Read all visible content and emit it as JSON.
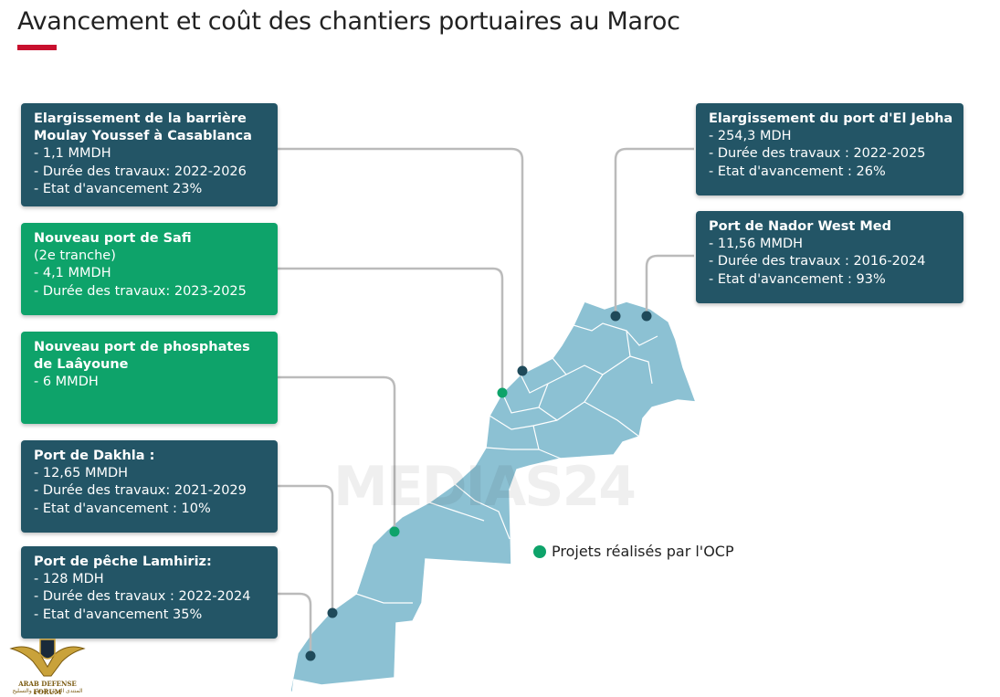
{
  "title": "Avancement et coût des chantiers portuaires au Maroc",
  "watermark": "MEDIAS24",
  "legend": {
    "label": "Projets réalisés par l'OCP",
    "color": "#0ea36a"
  },
  "colors": {
    "dark_card": "#235566",
    "green_card": "#0ea36a",
    "map_fill": "#8cc1d3",
    "accent": "#c8102e"
  },
  "cards": [
    {
      "id": "casablanca",
      "type": "dark",
      "title_lines": [
        "Elargissement de la barrière",
        "Moulay Youssef à Casablanca"
      ],
      "lines": [
        "- 1,1 MMDH",
        "- Durée des travaux: 2022-2026",
        "- Etat d'avancement 23%"
      ]
    },
    {
      "id": "safi",
      "type": "green",
      "title_lines": [
        "Nouveau port de Safi"
      ],
      "lines": [
        "(2e tranche)",
        "- 4,1 MMDH",
        "- Durée des travaux: 2023-2025"
      ]
    },
    {
      "id": "laayoune",
      "type": "green",
      "title_lines": [
        "Nouveau port de phosphates",
        "de Laâyoune"
      ],
      "lines": [
        "- 6 MMDH"
      ]
    },
    {
      "id": "dakhla",
      "type": "dark",
      "title_lines": [
        "Port de Dakhla :"
      ],
      "lines": [
        "- 12,65 MMDH",
        "- Durée des travaux: 2021-2029",
        "- Etat d'avancement : 10%"
      ]
    },
    {
      "id": "lamhiriz",
      "type": "dark",
      "title_lines": [
        "Port de pêche Lamhiriz:"
      ],
      "lines": [
        "- 128 MDH",
        "- Durée des travaux : 2022-2024",
        "- Etat d'avancement 35%"
      ]
    },
    {
      "id": "eljebha",
      "type": "dark",
      "title_lines": [
        "Elargissement du port d'El Jebha"
      ],
      "lines": [
        "- 254,3 MDH",
        "- Durée des travaux : 2022-2025",
        "- Etat d'avancement : 26%"
      ]
    },
    {
      "id": "nador",
      "type": "dark",
      "title_lines": [
        "Port de Nador West Med"
      ],
      "lines": [
        "- 11,56 MMDH",
        "- Durée des travaux : 2016-2024",
        "- Etat d'avancement : 93%"
      ]
    }
  ],
  "logo": {
    "text1": "ARAB DEFENSE FORUM",
    "text2": "المنتدى العربي للدفاع والتسليح"
  }
}
